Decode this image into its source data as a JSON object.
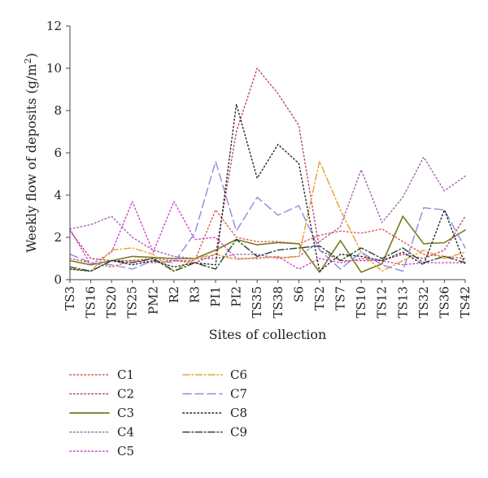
{
  "chart_data": {
    "type": "line",
    "ylabel_main": "Weekly flow of deposits (g/m",
    "ylabel_sup": "2",
    "ylabel_end": ")",
    "xlabel": "Sites of collection",
    "ylim": [
      0,
      12
    ],
    "yticks": [
      "0",
      "2",
      "4",
      "6",
      "8",
      "10",
      "12"
    ],
    "categories": [
      "TS3",
      "TS16",
      "TS20",
      "TS25",
      "PM2",
      "R2",
      "R3",
      "PI1",
      "PI2",
      "TS35",
      "TS38",
      "S6",
      "TS2",
      "TS7",
      "TS10",
      "TS12",
      "TS13",
      "TS32",
      "TS36",
      "TS42"
    ],
    "legend_position": "bottom-left",
    "series": [
      {
        "name": "C1",
        "color": "#e05050",
        "dash": "1.5,3",
        "width": 1.4,
        "values": [
          1.0,
          0.8,
          0.6,
          0.9,
          1.0,
          0.9,
          0.9,
          3.3,
          2.0,
          1.8,
          1.8,
          1.7,
          2.1,
          2.3,
          2.2,
          2.4,
          1.8,
          1.2,
          1.1,
          1.0
        ]
      },
      {
        "name": "C2",
        "color": "#b8406f",
        "dash": "1.5,3",
        "width": 1.4,
        "values": [
          2.3,
          1.0,
          0.9,
          0.9,
          0.8,
          0.9,
          0.8,
          1.2,
          7.0,
          10.0,
          8.8,
          7.3,
          1.4,
          0.9,
          0.9,
          0.9,
          1.2,
          1.0,
          1.4,
          3.0
        ]
      },
      {
        "name": "C3",
        "color": "#7a7a20",
        "dash": "",
        "width": 1.6,
        "values": [
          0.9,
          0.7,
          0.9,
          1.1,
          1.05,
          1.0,
          1.0,
          1.4,
          1.9,
          1.65,
          1.75,
          1.7,
          0.35,
          1.85,
          0.35,
          0.75,
          3.0,
          1.7,
          1.75,
          2.35
        ]
      },
      {
        "name": "C4",
        "color": "#a060b0",
        "dash": "1.5,3",
        "width": 1.4,
        "values": [
          2.4,
          2.6,
          3.0,
          2.0,
          1.4,
          1.1,
          1.0,
          1.0,
          1.2,
          1.2,
          1.0,
          1.1,
          1.8,
          2.5,
          5.2,
          2.7,
          3.9,
          5.8,
          4.2,
          4.9
        ]
      },
      {
        "name": "C5",
        "color": "#d040c8",
        "dash": "1.5,3",
        "width": 1.4,
        "values": [
          2.4,
          0.7,
          1.3,
          3.7,
          1.3,
          3.7,
          1.9,
          2.0,
          1.0,
          1.0,
          1.1,
          0.5,
          1.0,
          0.8,
          1.0,
          0.9,
          0.7,
          0.8,
          0.8,
          0.8
        ]
      },
      {
        "name": "C6",
        "color": "#e8a030",
        "dash": "8,3,1.5,3",
        "width": 1.4,
        "values": [
          0.5,
          0.4,
          1.4,
          1.5,
          1.2,
          0.4,
          1.0,
          1.2,
          0.95,
          1.05,
          1.05,
          1.1,
          5.6,
          3.3,
          1.3,
          0.4,
          0.9,
          1.4,
          1.0,
          1.3
        ]
      },
      {
        "name": "C7",
        "color": "#8c8ce0",
        "dash": "10,5",
        "width": 1.4,
        "values": [
          1.2,
          0.8,
          0.7,
          0.5,
          0.9,
          0.8,
          2.2,
          5.6,
          2.3,
          3.9,
          3.05,
          3.5,
          1.4,
          0.5,
          1.3,
          0.7,
          0.4,
          3.4,
          3.3,
          1.5
        ]
      },
      {
        "name": "C8",
        "color": "#222222",
        "dash": "1.5,3",
        "width": 1.4,
        "values": [
          0.5,
          0.4,
          0.9,
          0.7,
          0.9,
          0.6,
          0.8,
          0.7,
          8.3,
          4.8,
          6.4,
          5.5,
          0.4,
          1.2,
          1.1,
          0.9,
          1.3,
          0.7,
          3.3,
          0.7
        ]
      },
      {
        "name": "C9",
        "color": "#1a4a2a",
        "dash": "8,3,1.5,3",
        "width": 1.4,
        "values": [
          0.6,
          0.4,
          0.9,
          0.8,
          1.0,
          0.4,
          0.8,
          0.5,
          1.9,
          1.1,
          1.4,
          1.5,
          1.6,
          0.9,
          1.5,
          1.0,
          1.5,
          0.8,
          1.1,
          0.8
        ]
      }
    ]
  }
}
